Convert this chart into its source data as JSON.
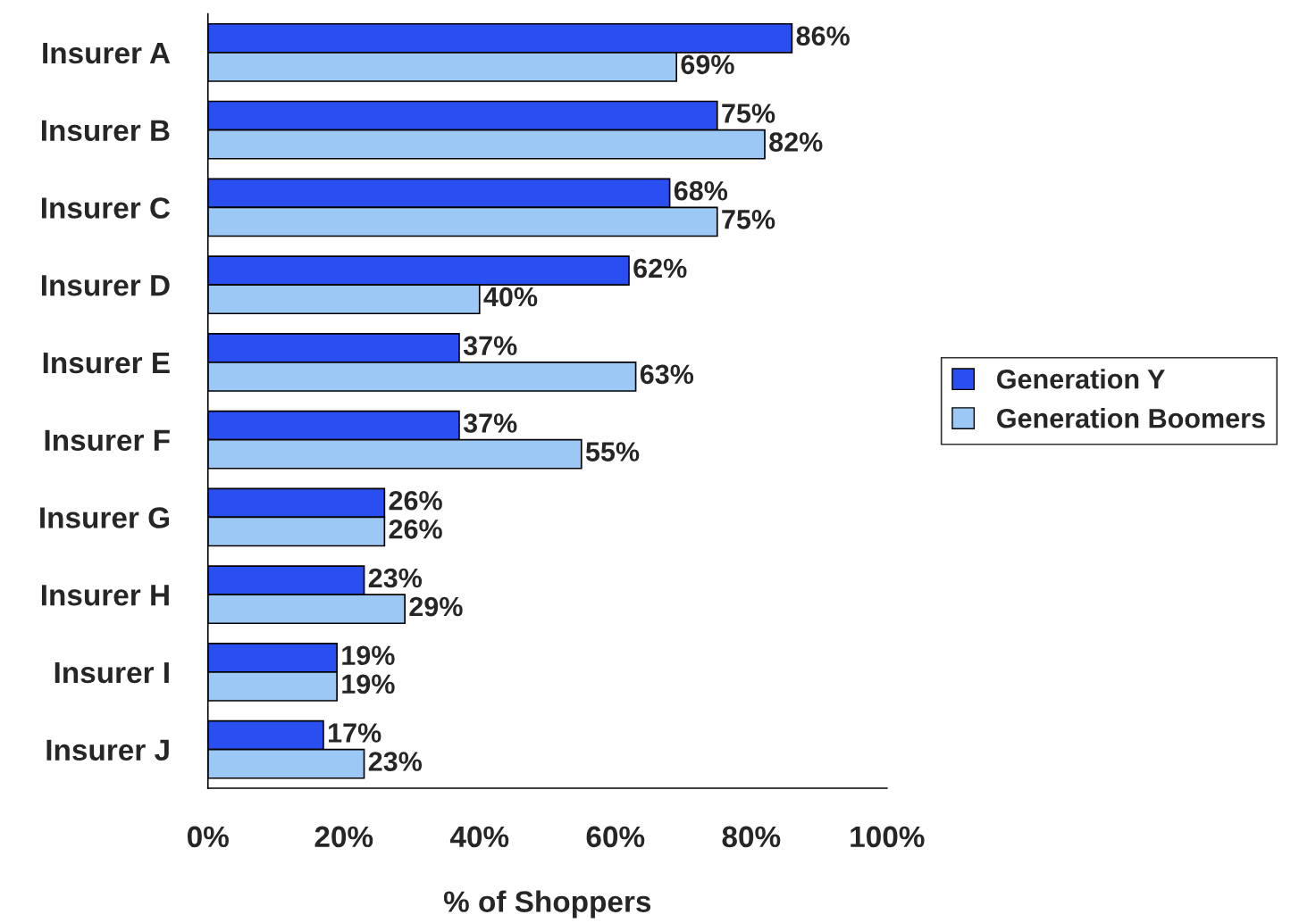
{
  "chart_data": {
    "type": "bar",
    "orientation": "horizontal",
    "xlabel": "% of Shoppers",
    "categories": [
      "Insurer A",
      "Insurer B",
      "Insurer C",
      "Insurer D",
      "Insurer E",
      "Insurer F",
      "Insurer G",
      "Insurer H",
      "Insurer I",
      "Insurer J"
    ],
    "series": [
      {
        "name": "Generation Y",
        "color": "#2a4ff0",
        "values": [
          86,
          75,
          68,
          62,
          37,
          37,
          26,
          23,
          19,
          17
        ],
        "value_labels": [
          "86%",
          "75%",
          "68%",
          "62%",
          "37%",
          "37%",
          "26%",
          "23%",
          "19%",
          "17%"
        ]
      },
      {
        "name": "Generation Boomers",
        "color": "#9cc8f5",
        "values": [
          69,
          82,
          75,
          40,
          63,
          55,
          26,
          29,
          19,
          23
        ],
        "value_labels": [
          "69%",
          "82%",
          "75%",
          "40%",
          "63%",
          "55%",
          "26%",
          "29%",
          "19%",
          "23%"
        ]
      }
    ],
    "xlim": [
      0,
      100
    ],
    "xticks": [
      {
        "value": 0,
        "label": "0%"
      },
      {
        "value": 20,
        "label": "20%"
      },
      {
        "value": 40,
        "label": "40%"
      },
      {
        "value": 60,
        "label": "60%"
      },
      {
        "value": 80,
        "label": "80%"
      },
      {
        "value": 100,
        "label": "100%"
      }
    ],
    "grid": false,
    "legend": "right"
  }
}
